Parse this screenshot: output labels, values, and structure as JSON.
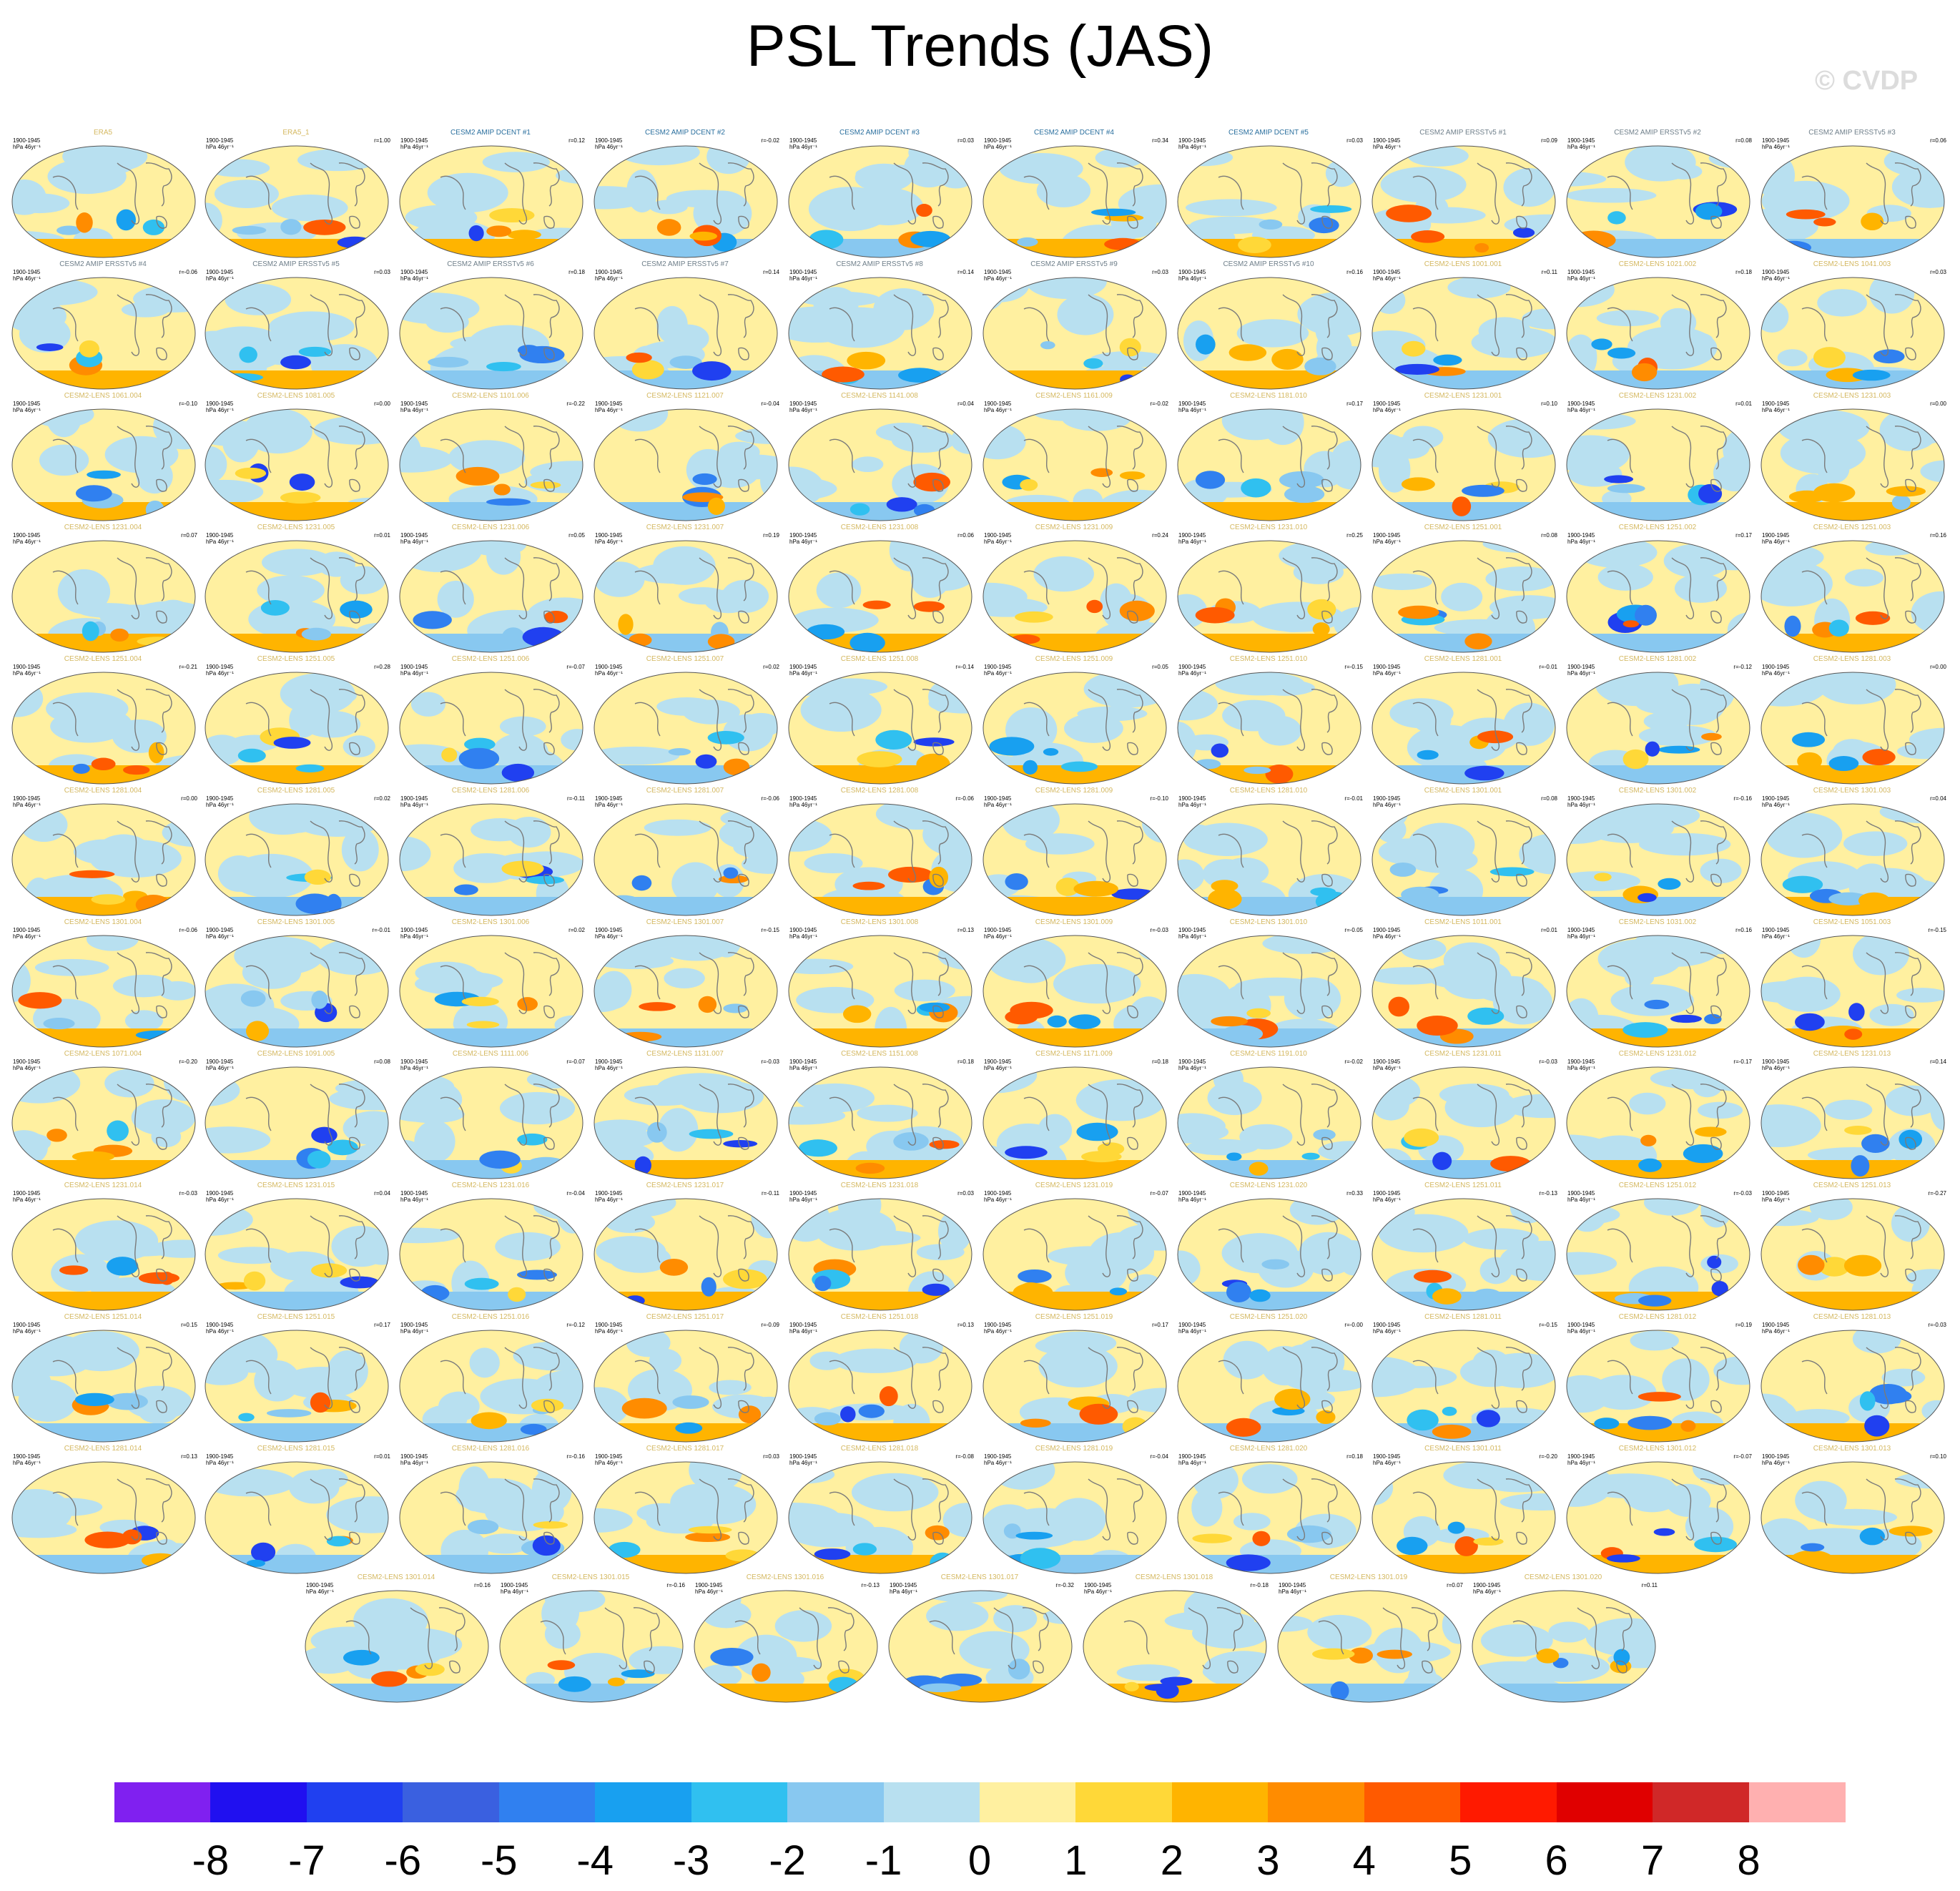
{
  "title": "PSL Trends (JAS)",
  "watermark": "© CVDP",
  "chart_data": {
    "type": "heatmap",
    "title": "PSL Trends (JAS)",
    "description_period": "1900-1945",
    "units": "hPa 46yr⁻¹",
    "colorbar": {
      "labels": [
        "-8",
        "-7",
        "-6",
        "-5",
        "-4",
        "-3",
        "-2",
        "-1",
        "0",
        "1",
        "2",
        "3",
        "4",
        "5",
        "6",
        "7",
        "8"
      ],
      "colors": [
        "#8020f0",
        "#2010f0",
        "#2040f0",
        "#3a60e0",
        "#3080f0",
        "#18a0f0",
        "#30c0f0",
        "#88c8f0",
        "#b8e0f0",
        "#fff0a0",
        "#ffd838",
        "#ffb400",
        "#ff8c00",
        "#ff5a00",
        "#ff1a00",
        "#e00000",
        "#d02828",
        "#ffb0b0"
      ]
    },
    "panels": [
      {
        "name": "ERA5",
        "r": "",
        "color": "#d4b860"
      },
      {
        "name": "ERA5_1",
        "r": "r=1.00",
        "color": "#d4b860"
      },
      {
        "name": "CESM2 AMIP DCENT #1",
        "r": "r=0.12",
        "color": "#2a6f9e"
      },
      {
        "name": "CESM2 AMIP DCENT #2",
        "r": "r=-0.02",
        "color": "#2a6f9e"
      },
      {
        "name": "CESM2 AMIP DCENT #3",
        "r": "r=0.03",
        "color": "#2a6f9e"
      },
      {
        "name": "CESM2 AMIP DCENT #4",
        "r": "r=0.34",
        "color": "#2a6f9e"
      },
      {
        "name": "CESM2 AMIP DCENT #5",
        "r": "r=0.03",
        "color": "#2a6f9e"
      },
      {
        "name": "CESM2 AMIP ERSSTv5 #1",
        "r": "r=0.09",
        "color": "#6f7f8a"
      },
      {
        "name": "CESM2 AMIP ERSSTv5 #2",
        "r": "r=0.08",
        "color": "#6f7f8a"
      },
      {
        "name": "CESM2 AMIP ERSSTv5 #3",
        "r": "r=0.06",
        "color": "#6f7f8a"
      },
      {
        "name": "CESM2 AMIP ERSSTv5 #4",
        "r": "r=-0.06",
        "color": "#6f7f8a"
      },
      {
        "name": "CESM2 AMIP ERSSTv5 #5",
        "r": "r=0.03",
        "color": "#6f7f8a"
      },
      {
        "name": "CESM2 AMIP ERSSTv5 #6",
        "r": "r=0.18",
        "color": "#6f7f8a"
      },
      {
        "name": "CESM2 AMIP ERSSTv5 #7",
        "r": "r=0.14",
        "color": "#6f7f8a"
      },
      {
        "name": "CESM2 AMIP ERSSTv5 #8",
        "r": "r=0.14",
        "color": "#6f7f8a"
      },
      {
        "name": "CESM2 AMIP ERSSTv5 #9",
        "r": "r=0.03",
        "color": "#6f7f8a"
      },
      {
        "name": "CESM2 AMIP ERSSTv5 #10",
        "r": "r=0.16",
        "color": "#6f7f8a"
      },
      {
        "name": "CESM2-LENS 1001.001",
        "r": "r=0.11",
        "color": "#d4b860"
      },
      {
        "name": "CESM2-LENS 1021.002",
        "r": "r=0.18",
        "color": "#d4b860"
      },
      {
        "name": "CESM2-LENS 1041.003",
        "r": "r=0.03",
        "color": "#d4b860"
      },
      {
        "name": "CESM2-LENS 1061.004",
        "r": "r=-0.10",
        "color": "#d4b860"
      },
      {
        "name": "CESM2-LENS 1081.005",
        "r": "r=0.00",
        "color": "#d4b860"
      },
      {
        "name": "CESM2-LENS 1101.006",
        "r": "r=-0.22",
        "color": "#d4b860"
      },
      {
        "name": "CESM2-LENS 1121.007",
        "r": "r=-0.04",
        "color": "#d4b860"
      },
      {
        "name": "CESM2-LENS 1141.008",
        "r": "r=0.04",
        "color": "#d4b860"
      },
      {
        "name": "CESM2-LENS 1161.009",
        "r": "r=-0.02",
        "color": "#d4b860"
      },
      {
        "name": "CESM2-LENS 1181.010",
        "r": "r=0.17",
        "color": "#d4b860"
      },
      {
        "name": "CESM2-LENS 1231.001",
        "r": "r=0.10",
        "color": "#d4b860"
      },
      {
        "name": "CESM2-LENS 1231.002",
        "r": "r=0.01",
        "color": "#d4b860"
      },
      {
        "name": "CESM2-LENS 1231.003",
        "r": "r=0.00",
        "color": "#d4b860"
      },
      {
        "name": "CESM2-LENS 1231.004",
        "r": "r=0.07",
        "color": "#d4b860"
      },
      {
        "name": "CESM2-LENS 1231.005",
        "r": "r=0.01",
        "color": "#d4b860"
      },
      {
        "name": "CESM2-LENS 1231.006",
        "r": "r=0.05",
        "color": "#d4b860"
      },
      {
        "name": "CESM2-LENS 1231.007",
        "r": "r=0.19",
        "color": "#d4b860"
      },
      {
        "name": "CESM2-LENS 1231.008",
        "r": "r=0.06",
        "color": "#d4b860"
      },
      {
        "name": "CESM2-LENS 1231.009",
        "r": "r=0.24",
        "color": "#d4b860"
      },
      {
        "name": "CESM2-LENS 1231.010",
        "r": "r=0.25",
        "color": "#d4b860"
      },
      {
        "name": "CESM2-LENS 1251.001",
        "r": "r=0.08",
        "color": "#d4b860"
      },
      {
        "name": "CESM2-LENS 1251.002",
        "r": "r=0.17",
        "color": "#d4b860"
      },
      {
        "name": "CESM2-LENS 1251.003",
        "r": "r=0.16",
        "color": "#d4b860"
      },
      {
        "name": "CESM2-LENS 1251.004",
        "r": "r=-0.21",
        "color": "#d4b860"
      },
      {
        "name": "CESM2-LENS 1251.005",
        "r": "r=0.28",
        "color": "#d4b860"
      },
      {
        "name": "CESM2-LENS 1251.006",
        "r": "r=-0.07",
        "color": "#d4b860"
      },
      {
        "name": "CESM2-LENS 1251.007",
        "r": "r=0.02",
        "color": "#d4b860"
      },
      {
        "name": "CESM2-LENS 1251.008",
        "r": "r=-0.14",
        "color": "#d4b860"
      },
      {
        "name": "CESM2-LENS 1251.009",
        "r": "r=0.05",
        "color": "#d4b860"
      },
      {
        "name": "CESM2-LENS 1251.010",
        "r": "r=-0.15",
        "color": "#d4b860"
      },
      {
        "name": "CESM2-LENS 1281.001",
        "r": "r=-0.01",
        "color": "#d4b860"
      },
      {
        "name": "CESM2-LENS 1281.002",
        "r": "r=-0.12",
        "color": "#d4b860"
      },
      {
        "name": "CESM2-LENS 1281.003",
        "r": "r=0.00",
        "color": "#d4b860"
      },
      {
        "name": "CESM2-LENS 1281.004",
        "r": "r=0.00",
        "color": "#d4b860"
      },
      {
        "name": "CESM2-LENS 1281.005",
        "r": "r=0.02",
        "color": "#d4b860"
      },
      {
        "name": "CESM2-LENS 1281.006",
        "r": "r=-0.11",
        "color": "#d4b860"
      },
      {
        "name": "CESM2-LENS 1281.007",
        "r": "r=-0.06",
        "color": "#d4b860"
      },
      {
        "name": "CESM2-LENS 1281.008",
        "r": "r=-0.06",
        "color": "#d4b860"
      },
      {
        "name": "CESM2-LENS 1281.009",
        "r": "r=-0.10",
        "color": "#d4b860"
      },
      {
        "name": "CESM2-LENS 1281.010",
        "r": "r=-0.01",
        "color": "#d4b860"
      },
      {
        "name": "CESM2-LENS 1301.001",
        "r": "r=0.08",
        "color": "#d4b860"
      },
      {
        "name": "CESM2-LENS 1301.002",
        "r": "r=-0.16",
        "color": "#d4b860"
      },
      {
        "name": "CESM2-LENS 1301.003",
        "r": "r=0.04",
        "color": "#d4b860"
      },
      {
        "name": "CESM2-LENS 1301.004",
        "r": "r=-0.06",
        "color": "#d4b860"
      },
      {
        "name": "CESM2-LENS 1301.005",
        "r": "r=-0.01",
        "color": "#d4b860"
      },
      {
        "name": "CESM2-LENS 1301.006",
        "r": "r=0.02",
        "color": "#d4b860"
      },
      {
        "name": "CESM2-LENS 1301.007",
        "r": "r=-0.15",
        "color": "#d4b860"
      },
      {
        "name": "CESM2-LENS 1301.008",
        "r": "r=0.13",
        "color": "#d4b860"
      },
      {
        "name": "CESM2-LENS 1301.009",
        "r": "r=-0.03",
        "color": "#d4b860"
      },
      {
        "name": "CESM2-LENS 1301.010",
        "r": "r=-0.05",
        "color": "#d4b860"
      },
      {
        "name": "CESM2-LENS 1011.001",
        "r": "r=0.01",
        "color": "#d4b860"
      },
      {
        "name": "CESM2-LENS 1031.002",
        "r": "r=0.16",
        "color": "#d4b860"
      },
      {
        "name": "CESM2-LENS 1051.003",
        "r": "r=-0.15",
        "color": "#d4b860"
      },
      {
        "name": "CESM2-LENS 1071.004",
        "r": "r=-0.20",
        "color": "#d4b860"
      },
      {
        "name": "CESM2-LENS 1091.005",
        "r": "r=0.08",
        "color": "#d4b860"
      },
      {
        "name": "CESM2-LENS 1111.006",
        "r": "r=-0.07",
        "color": "#d4b860"
      },
      {
        "name": "CESM2-LENS 1131.007",
        "r": "r=-0.03",
        "color": "#d4b860"
      },
      {
        "name": "CESM2-LENS 1151.008",
        "r": "r=0.18",
        "color": "#d4b860"
      },
      {
        "name": "CESM2-LENS 1171.009",
        "r": "r=0.18",
        "color": "#d4b860"
      },
      {
        "name": "CESM2-LENS 1191.010",
        "r": "r=-0.02",
        "color": "#d4b860"
      },
      {
        "name": "CESM2-LENS 1231.011",
        "r": "r=-0.03",
        "color": "#d4b860"
      },
      {
        "name": "CESM2-LENS 1231.012",
        "r": "r=-0.17",
        "color": "#d4b860"
      },
      {
        "name": "CESM2-LENS 1231.013",
        "r": "r=0.14",
        "color": "#d4b860"
      },
      {
        "name": "CESM2-LENS 1231.014",
        "r": "r=-0.03",
        "color": "#d4b860"
      },
      {
        "name": "CESM2-LENS 1231.015",
        "r": "r=0.04",
        "color": "#d4b860"
      },
      {
        "name": "CESM2-LENS 1231.016",
        "r": "r=-0.04",
        "color": "#d4b860"
      },
      {
        "name": "CESM2-LENS 1231.017",
        "r": "r=-0.11",
        "color": "#d4b860"
      },
      {
        "name": "CESM2-LENS 1231.018",
        "r": "r=0.03",
        "color": "#d4b860"
      },
      {
        "name": "CESM2-LENS 1231.019",
        "r": "r=-0.07",
        "color": "#d4b860"
      },
      {
        "name": "CESM2-LENS 1231.020",
        "r": "r=0.33",
        "color": "#d4b860"
      },
      {
        "name": "CESM2-LENS 1251.011",
        "r": "r=-0.13",
        "color": "#d4b860"
      },
      {
        "name": "CESM2-LENS 1251.012",
        "r": "r=-0.03",
        "color": "#d4b860"
      },
      {
        "name": "CESM2-LENS 1251.013",
        "r": "r=-0.27",
        "color": "#d4b860"
      },
      {
        "name": "CESM2-LENS 1251.014",
        "r": "r=0.15",
        "color": "#d4b860"
      },
      {
        "name": "CESM2-LENS 1251.015",
        "r": "r=0.17",
        "color": "#d4b860"
      },
      {
        "name": "CESM2-LENS 1251.016",
        "r": "r=-0.12",
        "color": "#d4b860"
      },
      {
        "name": "CESM2-LENS 1251.017",
        "r": "r=-0.09",
        "color": "#d4b860"
      },
      {
        "name": "CESM2-LENS 1251.018",
        "r": "r=0.13",
        "color": "#d4b860"
      },
      {
        "name": "CESM2-LENS 1251.019",
        "r": "r=0.17",
        "color": "#d4b860"
      },
      {
        "name": "CESM2-LENS 1251.020",
        "r": "r=-0.00",
        "color": "#d4b860"
      },
      {
        "name": "CESM2-LENS 1281.011",
        "r": "r=-0.15",
        "color": "#d4b860"
      },
      {
        "name": "CESM2-LENS 1281.012",
        "r": "r=0.19",
        "color": "#d4b860"
      },
      {
        "name": "CESM2-LENS 1281.013",
        "r": "r=-0.03",
        "color": "#d4b860"
      },
      {
        "name": "CESM2-LENS 1281.014",
        "r": "r=0.13",
        "color": "#d4b860"
      },
      {
        "name": "CESM2-LENS 1281.015",
        "r": "r=0.01",
        "color": "#d4b860"
      },
      {
        "name": "CESM2-LENS 1281.016",
        "r": "r=-0.16",
        "color": "#d4b860"
      },
      {
        "name": "CESM2-LENS 1281.017",
        "r": "r=0.03",
        "color": "#d4b860"
      },
      {
        "name": "CESM2-LENS 1281.018",
        "r": "r=-0.08",
        "color": "#d4b860"
      },
      {
        "name": "CESM2-LENS 1281.019",
        "r": "r=-0.04",
        "color": "#d4b860"
      },
      {
        "name": "CESM2-LENS 1281.020",
        "r": "r=0.18",
        "color": "#d4b860"
      },
      {
        "name": "CESM2-LENS 1301.011",
        "r": "r=-0.20",
        "color": "#d4b860"
      },
      {
        "name": "CESM2-LENS 1301.012",
        "r": "r=-0.07",
        "color": "#d4b860"
      },
      {
        "name": "CESM2-LENS 1301.013",
        "r": "r=0.10",
        "color": "#d4b860"
      },
      {
        "name": "CESM2-LENS 1301.014",
        "r": "r=0.16",
        "color": "#d4b860"
      },
      {
        "name": "CESM2-LENS 1301.015",
        "r": "r=-0.16",
        "color": "#d4b860"
      },
      {
        "name": "CESM2-LENS 1301.016",
        "r": "r=-0.13",
        "color": "#d4b860"
      },
      {
        "name": "CESM2-LENS 1301.017",
        "r": "r=-0.32",
        "color": "#d4b860"
      },
      {
        "name": "CESM2-LENS 1301.018",
        "r": "r=-0.18",
        "color": "#d4b860"
      },
      {
        "name": "CESM2-LENS 1301.019",
        "r": "r=0.07",
        "color": "#d4b860"
      },
      {
        "name": "CESM2-LENS 1301.020",
        "r": "r=0.11",
        "color": "#d4b860"
      }
    ]
  }
}
